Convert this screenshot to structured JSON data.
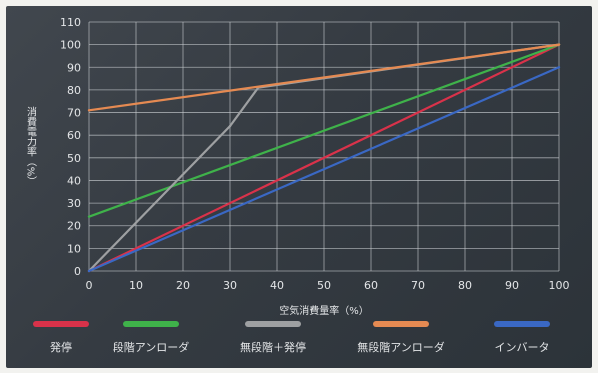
{
  "chart_data": {
    "type": "line",
    "xlabel": "空気消費量率（%）",
    "ylabel": "消費電力率（%）",
    "xlim": [
      0,
      100
    ],
    "ylim": [
      0,
      110
    ],
    "x_ticks": [
      0,
      10,
      20,
      30,
      40,
      50,
      60,
      70,
      80,
      90,
      100
    ],
    "y_ticks": [
      0,
      10,
      20,
      30,
      40,
      50,
      60,
      70,
      80,
      90,
      100,
      110
    ],
    "grid": true,
    "legend_position": "bottom",
    "series": [
      {
        "name": "発停",
        "color": "#d9324a",
        "points": [
          [
            0,
            0
          ],
          [
            100,
            100
          ]
        ]
      },
      {
        "name": "段階アンローダ",
        "color": "#3fb24a",
        "points": [
          [
            0,
            24
          ],
          [
            100,
            100
          ]
        ]
      },
      {
        "name": "無段階＋発停",
        "color": "#9ea0a2",
        "points": [
          [
            0,
            0
          ],
          [
            30,
            64
          ],
          [
            36,
            81
          ],
          [
            100,
            100
          ]
        ]
      },
      {
        "name": "無段階アンローダ",
        "color": "#e58a52",
        "points": [
          [
            0,
            71
          ],
          [
            100,
            100
          ]
        ]
      },
      {
        "name": "インバータ",
        "color": "#3a68c4",
        "points": [
          [
            0,
            0
          ],
          [
            100,
            90
          ]
        ]
      }
    ]
  },
  "colors": {
    "panel_background": "#3a4047",
    "gridline": "#c8ccd0"
  }
}
